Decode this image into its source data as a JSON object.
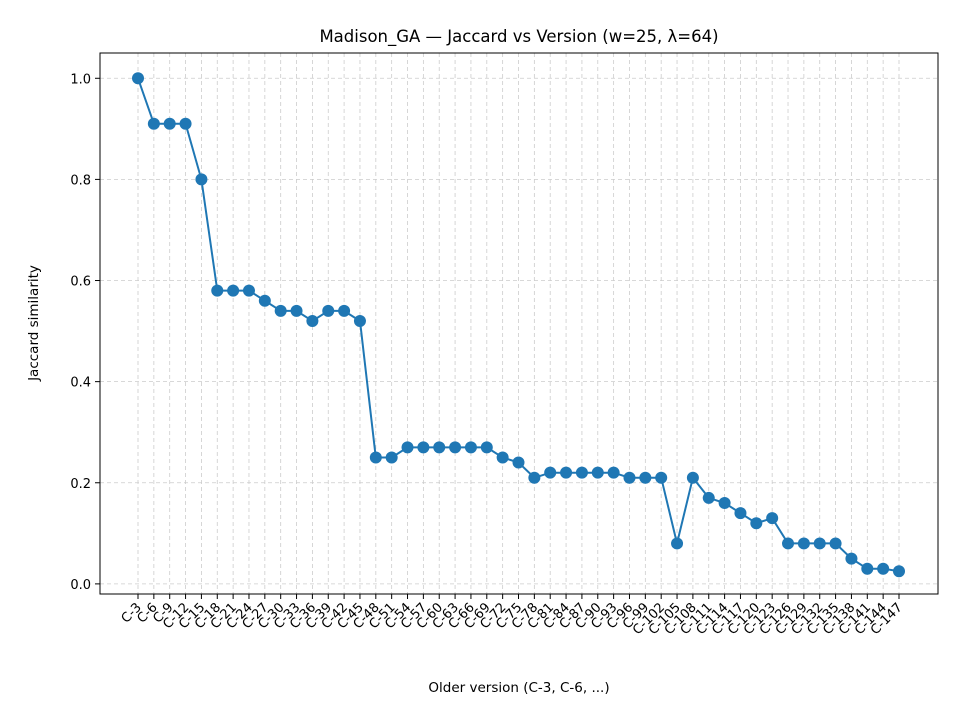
{
  "chart_data": {
    "type": "line",
    "title": "Madison_GA — Jaccard vs Version (w=25, λ=64)",
    "xlabel": "Older version (C-3, C-6, ...)",
    "ylabel": "Jaccard similarity",
    "ylim": [
      -0.02,
      1.05
    ],
    "yticks": [
      "0.0",
      "0.2",
      "0.4",
      "0.6",
      "0.8",
      "1.0"
    ],
    "grid": true,
    "color": "#1f77b4",
    "categories": [
      "C-3",
      "C-6",
      "C-9",
      "C-12",
      "C-15",
      "C-18",
      "C-21",
      "C-24",
      "C-27",
      "C-30",
      "C-33",
      "C-36",
      "C-39",
      "C-42",
      "C-45",
      "C-48",
      "C-51",
      "C-54",
      "C-57",
      "C-60",
      "C-63",
      "C-66",
      "C-69",
      "C-72",
      "C-75",
      "C-78",
      "C-81",
      "C-84",
      "C-87",
      "C-90",
      "C-93",
      "C-96",
      "C-99",
      "C-102",
      "C-105",
      "C-108",
      "C-111",
      "C-114",
      "C-117",
      "C-120",
      "C-123",
      "C-126",
      "C-129",
      "C-132",
      "C-135",
      "C-138",
      "C-141",
      "C-144",
      "C-147"
    ],
    "series": [
      {
        "values": [
          1.0,
          0.91,
          0.91,
          0.91,
          0.8,
          0.58,
          0.58,
          0.58,
          0.56,
          0.54,
          0.54,
          0.52,
          0.54,
          0.54,
          0.52,
          0.25,
          0.25,
          0.27,
          0.27,
          0.27,
          0.27,
          0.27,
          0.27,
          0.25,
          0.24,
          0.21,
          0.22,
          0.22,
          0.22,
          0.22,
          0.22,
          0.21,
          0.21,
          0.21,
          0.08,
          0.21,
          0.17,
          0.16,
          0.14,
          0.12,
          0.13,
          0.08,
          0.08,
          0.08,
          0.08,
          0.05,
          0.03,
          0.03,
          0.025
        ]
      }
    ]
  }
}
